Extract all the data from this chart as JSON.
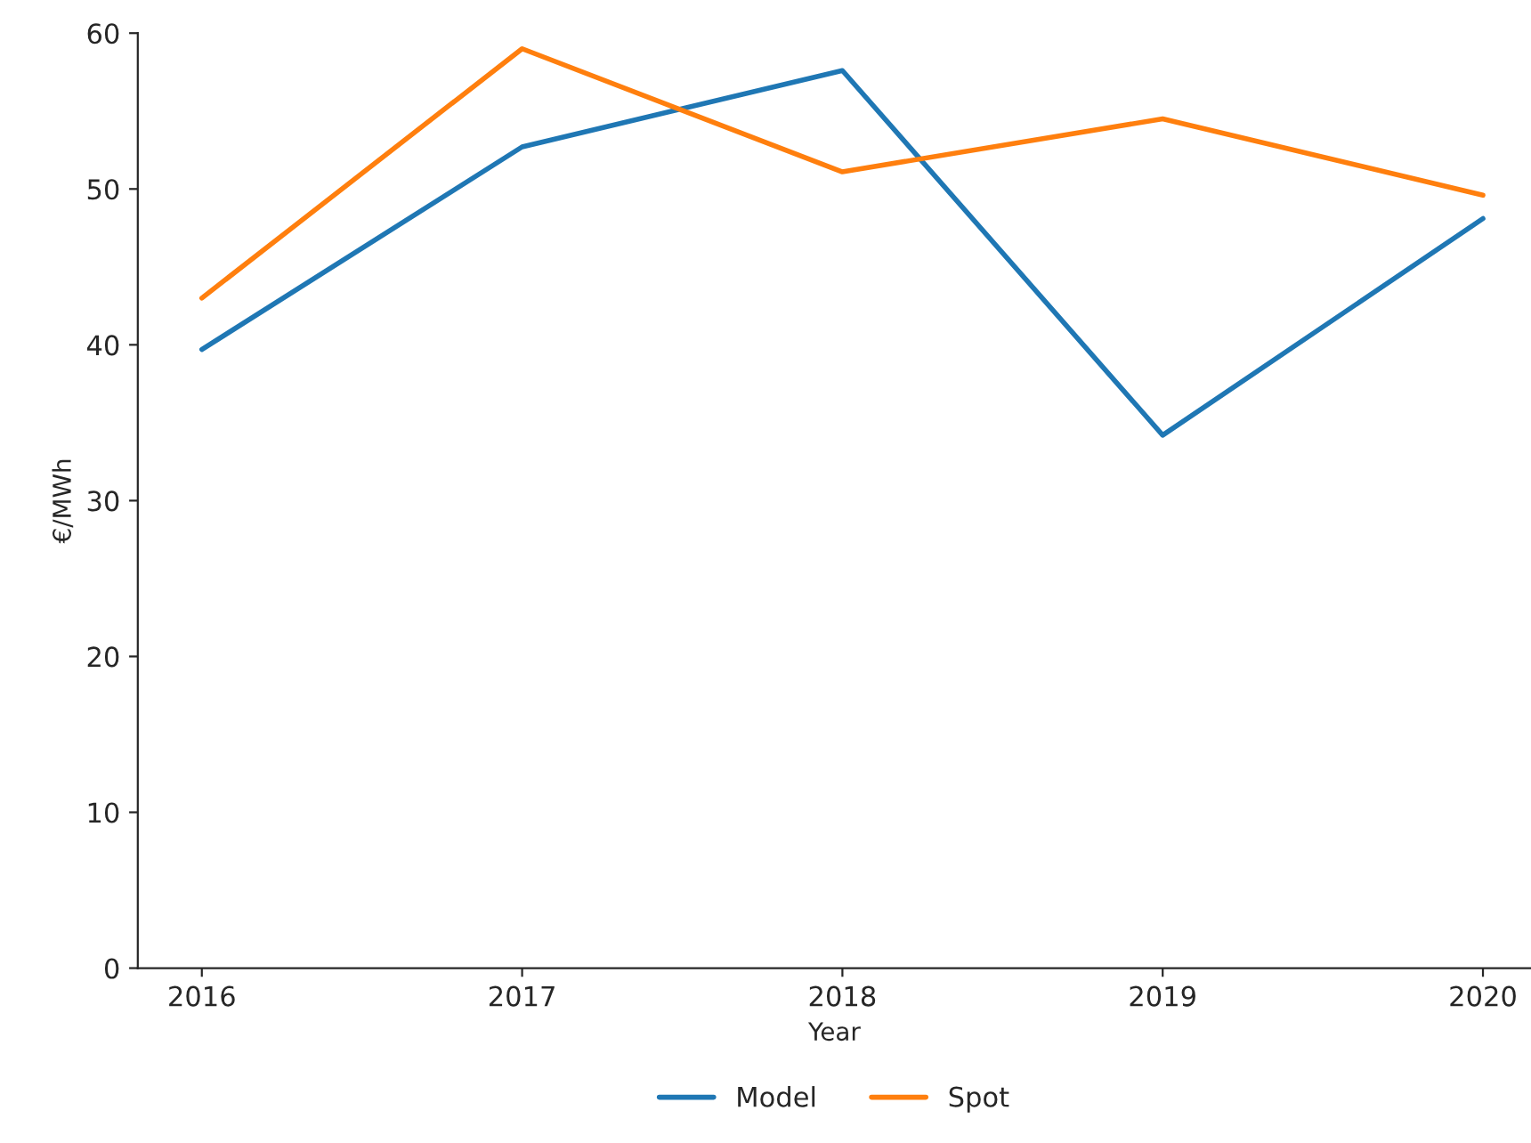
{
  "chart_data": {
    "type": "line",
    "xlabel": "Year",
    "ylabel": "€/MWh",
    "x": [
      2016,
      2017,
      2018,
      2019,
      2020
    ],
    "series": [
      {
        "name": "Model",
        "color": "#1f77b4",
        "values": [
          39.7,
          52.7,
          57.6,
          34.2,
          48.1
        ]
      },
      {
        "name": "Spot",
        "color": "#ff7f0e",
        "values": [
          43.0,
          59.0,
          51.1,
          54.5,
          49.6
        ]
      }
    ],
    "xlim": [
      2015.8,
      2020.15
    ],
    "xticks": [
      2016,
      2017,
      2018,
      2019,
      2020
    ],
    "ylim": [
      0,
      60
    ],
    "yticks": [
      0,
      10,
      20,
      30,
      40,
      50,
      60
    ],
    "grid": false,
    "legend": "bottom",
    "marker": "none",
    "line_style": "solid"
  }
}
